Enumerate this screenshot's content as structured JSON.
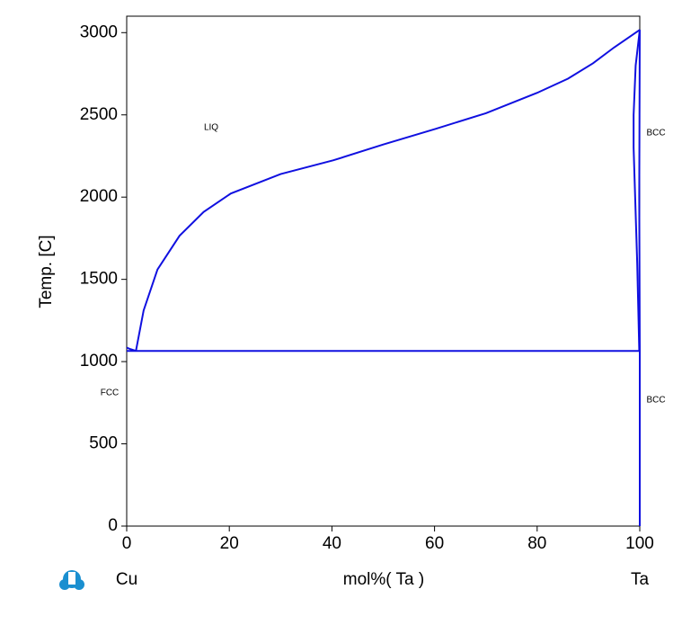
{
  "chart_data": {
    "type": "line",
    "ylabel": "Temp. [C]",
    "xlabel": "mol%(  Ta  )",
    "x_start_label": "Cu",
    "x_end_label": "Ta",
    "xlim": [
      0,
      100
    ],
    "ylim": [
      0,
      3100
    ],
    "xticks": [
      0,
      20,
      40,
      60,
      80,
      100
    ],
    "yticks": [
      0,
      500,
      1000,
      1500,
      2000,
      2500,
      3000
    ],
    "grid": false,
    "series": [
      {
        "color": "#1010e0",
        "x": [
          1.8,
          3.3,
          6,
          10.3,
          15,
          20.3,
          30,
          40.3,
          50,
          60.2,
          70,
          80,
          86,
          90.9,
          95,
          100
        ],
        "values": [
          1065,
          1311,
          1560,
          1765,
          1910,
          2022,
          2140,
          2224,
          2320,
          2415,
          2510,
          2634,
          2720,
          2814,
          2910,
          3017
        ]
      },
      {
        "color": "#1010e0",
        "x": [
          0,
          100
        ],
        "values": [
          1065,
          1065
        ]
      },
      {
        "color": "#1010e0",
        "x": [
          0,
          0.8,
          1.8
        ],
        "values": [
          1085,
          1075,
          1065
        ]
      },
      {
        "color": "#1010e0",
        "x": [
          100,
          99.2,
          98.8,
          98.8,
          99.1,
          99.5,
          99.8,
          99.9
        ],
        "values": [
          3017,
          2800,
          2500,
          2300,
          2000,
          1600,
          1200,
          1065
        ]
      },
      {
        "color": "#1010e0",
        "x": [
          100,
          99.9,
          100,
          100
        ],
        "values": [
          3017,
          2000,
          1065,
          0
        ]
      }
    ],
    "annotations": [
      "LIQ",
      "BCC",
      "FCC",
      "BCC"
    ]
  }
}
